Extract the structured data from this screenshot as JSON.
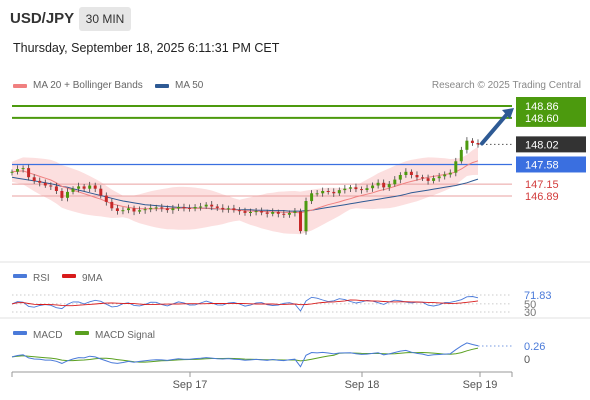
{
  "header": {
    "symbol": "USD/JPY",
    "timeframe": "30 MIN",
    "datetime": "Thursday, September 18, 2025 6:11:31 PM CET"
  },
  "legend": {
    "ma20_label": "MA 20 + Bollinger Bands",
    "ma20_color": "#f08080",
    "ma50_label": "MA 50",
    "ma50_color": "#2e5a94",
    "research": "Research © 2025 Trading Central"
  },
  "chart_data": [
    {
      "type": "line",
      "panel": "price",
      "title": "",
      "xlabel": "",
      "ylabel": "",
      "x_ticks": [
        "Sep 17",
        "Sep 18",
        "Sep 19"
      ],
      "ylim": [
        145.9,
        149.2
      ],
      "levels": [
        {
          "value": 148.86,
          "label": "148.86",
          "kind": "target",
          "color": "#4c9a0e"
        },
        {
          "value": 148.6,
          "label": "148.60",
          "kind": "target",
          "color": "#4c9a0e"
        },
        {
          "value": 148.02,
          "label": "148.02",
          "kind": "last",
          "color": "#333333"
        },
        {
          "value": 147.58,
          "label": "147.58",
          "kind": "pivot",
          "color": "#3a6fe0"
        },
        {
          "value": 147.15,
          "label": "147.15",
          "kind": "support",
          "color": "#d23c3c"
        },
        {
          "value": 146.89,
          "label": "146.89",
          "kind": "support",
          "color": "#d23c3c"
        }
      ],
      "close_series": [
        147.42,
        147.48,
        147.5,
        147.3,
        147.22,
        147.18,
        147.12,
        147.1,
        147.0,
        146.85,
        146.98,
        147.05,
        147.1,
        147.05,
        147.12,
        147.05,
        146.9,
        146.76,
        146.62,
        146.56,
        146.58,
        146.62,
        146.55,
        146.58,
        146.6,
        146.63,
        146.64,
        146.62,
        146.58,
        146.62,
        146.65,
        146.63,
        146.62,
        146.65,
        146.66,
        146.7,
        146.66,
        146.63,
        146.6,
        146.62,
        146.58,
        146.56,
        146.52,
        146.54,
        146.56,
        146.53,
        146.5,
        146.54,
        146.5,
        146.48,
        146.52,
        146.55,
        146.12,
        146.78,
        146.95,
        146.95,
        147.0,
        146.98,
        146.95,
        147.02,
        147.05,
        147.08,
        147.04,
        147.02,
        147.06,
        147.12,
        147.18,
        147.08,
        147.15,
        147.25,
        147.35,
        147.42,
        147.35,
        147.3,
        147.28,
        147.22,
        147.28,
        147.32,
        147.36,
        147.4,
        147.65,
        147.9,
        148.1,
        148.05,
        148.02
      ],
      "ma20": [
        147.42,
        147.43,
        147.44,
        147.4,
        147.36,
        147.32,
        147.28,
        147.24,
        147.18,
        147.1,
        147.06,
        147.02,
        146.98,
        146.94,
        146.9,
        146.86,
        146.82,
        146.77,
        146.72,
        146.69,
        146.66,
        146.64,
        146.62,
        146.61,
        146.61,
        146.61,
        146.61,
        146.61,
        146.61,
        146.62,
        146.62,
        146.62,
        146.62,
        146.62,
        146.62,
        146.62,
        146.62,
        146.61,
        146.6,
        146.6,
        146.59,
        146.58,
        146.57,
        146.56,
        146.56,
        146.55,
        146.55,
        146.54,
        146.54,
        146.53,
        146.53,
        146.53,
        146.52,
        146.55,
        146.58,
        146.62,
        146.66,
        146.7,
        146.73,
        146.76,
        146.8,
        146.83,
        146.87,
        146.9,
        146.93,
        146.96,
        147.0,
        147.03,
        147.06,
        147.1,
        147.14,
        147.18,
        147.21,
        147.24,
        147.27,
        147.3,
        147.32,
        147.34,
        147.36,
        147.38,
        147.42,
        147.48,
        147.56,
        147.62,
        147.66
      ],
      "ma50": [
        147.3,
        147.28,
        147.26,
        147.24,
        147.22,
        147.2,
        147.18,
        147.16,
        147.13,
        147.1,
        147.08,
        147.05,
        147.02,
        146.99,
        146.96,
        146.93,
        146.9,
        146.87,
        146.84,
        146.81,
        146.78,
        146.76,
        146.74,
        146.72,
        146.7,
        146.69,
        146.68,
        146.67,
        146.66,
        146.65,
        146.64,
        146.64,
        146.63,
        146.63,
        146.62,
        146.62,
        146.61,
        146.61,
        146.6,
        146.6,
        146.6,
        146.59,
        146.59,
        146.59,
        146.58,
        146.58,
        146.58,
        146.57,
        146.57,
        146.57,
        146.56,
        146.56,
        146.56,
        146.57,
        146.58,
        146.6,
        146.62,
        146.64,
        146.66,
        146.68,
        146.7,
        146.72,
        146.74,
        146.76,
        146.78,
        146.8,
        146.82,
        146.84,
        146.86,
        146.88,
        146.9,
        146.93,
        146.96,
        146.98,
        147.0,
        147.02,
        147.04,
        147.06,
        147.08,
        147.1,
        147.12,
        147.15,
        147.18,
        147.22,
        147.26
      ]
    },
    {
      "type": "line",
      "panel": "rsi",
      "series": [
        {
          "name": "RSI",
          "color": "#4a7ad9"
        },
        {
          "name": "9MA",
          "color": "#d81b1b"
        }
      ],
      "levels": [
        {
          "value": 71.83,
          "label": "71.83"
        },
        {
          "value": 50,
          "label": "50"
        },
        {
          "value": 30,
          "label": "30"
        }
      ]
    },
    {
      "type": "line",
      "panel": "macd",
      "series": [
        {
          "name": "MACD",
          "color": "#4a7ad9"
        },
        {
          "name": "MACD Signal",
          "color": "#5aa020"
        }
      ],
      "levels": [
        {
          "value": 0.26,
          "label": "0.26"
        },
        {
          "value": 0,
          "label": "0"
        }
      ]
    }
  ]
}
